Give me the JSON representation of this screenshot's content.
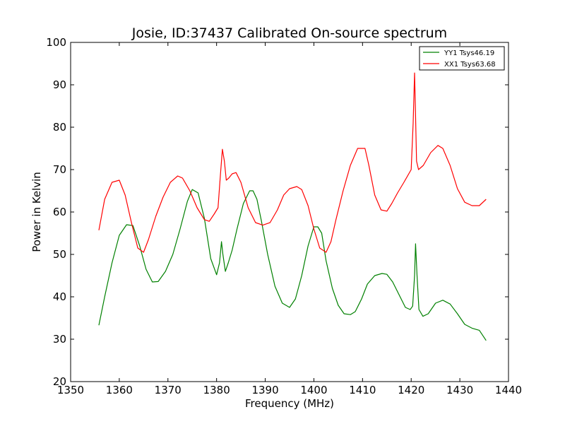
{
  "chart_data": {
    "type": "line",
    "title": "Josie, ID:37437 Calibrated On-source spectrum",
    "xlabel": "Frequency (MHz)",
    "ylabel": "Power in Kelvin",
    "xlim": [
      1350,
      1440
    ],
    "ylim": [
      20,
      100
    ],
    "xticks": [
      1350,
      1360,
      1370,
      1380,
      1390,
      1400,
      1410,
      1420,
      1430,
      1440
    ],
    "yticks": [
      20,
      30,
      40,
      50,
      60,
      70,
      80,
      90,
      100
    ],
    "grid": false,
    "legend_position": "top-right",
    "series": [
      {
        "name": "YY1 Tsys46.19",
        "color": "#008000",
        "x": [
          1355.8,
          1357.0,
          1358.5,
          1360.0,
          1361.5,
          1362.8,
          1364.2,
          1365.5,
          1366.8,
          1368.0,
          1369.5,
          1371.0,
          1372.5,
          1374.0,
          1375.0,
          1376.2,
          1377.5,
          1378.8,
          1380.0,
          1380.6,
          1381.0,
          1381.3,
          1381.8,
          1382.4,
          1383.2,
          1384.2,
          1385.5,
          1386.8,
          1387.5,
          1388.3,
          1389.2,
          1390.5,
          1392.0,
          1393.5,
          1395.0,
          1396.2,
          1397.5,
          1398.8,
          1400.0,
          1400.8,
          1401.6,
          1402.5,
          1403.8,
          1405.0,
          1406.2,
          1407.5,
          1408.5,
          1409.8,
          1411.0,
          1412.5,
          1414.0,
          1415.0,
          1416.2,
          1417.5,
          1418.8,
          1419.8,
          1420.3,
          1420.7,
          1420.9,
          1421.2,
          1421.6,
          1422.4,
          1423.5,
          1425.0,
          1426.5,
          1428.0,
          1429.5,
          1431.0,
          1432.5,
          1434.0,
          1435.4
        ],
        "y": [
          33.3,
          40.0,
          48.0,
          54.5,
          57.0,
          56.8,
          52.0,
          46.5,
          43.5,
          43.6,
          46.0,
          50.0,
          56.0,
          62.5,
          65.3,
          64.5,
          58.5,
          49.0,
          45.2,
          48.0,
          53.0,
          50.0,
          46.0,
          48.0,
          51.0,
          56.0,
          62.0,
          65.0,
          65.0,
          63.0,
          58.0,
          50.0,
          42.5,
          38.5,
          37.5,
          39.5,
          45.0,
          52.0,
          56.5,
          56.5,
          55.0,
          48.5,
          42.0,
          38.0,
          36.0,
          35.8,
          36.5,
          39.5,
          43.0,
          45.0,
          45.5,
          45.3,
          43.5,
          40.5,
          37.5,
          37.0,
          37.8,
          45.0,
          52.5,
          45.0,
          37.0,
          35.4,
          36.0,
          38.5,
          39.2,
          38.3,
          36.0,
          33.5,
          32.6,
          32.1,
          29.7
        ]
      },
      {
        "name": "XX1 Tsys63.68",
        "color": "#ff0000",
        "x": [
          1355.8,
          1357.0,
          1358.5,
          1360.0,
          1361.2,
          1362.5,
          1363.8,
          1365.0,
          1366.0,
          1367.5,
          1369.0,
          1370.5,
          1372.0,
          1373.0,
          1374.5,
          1376.0,
          1377.5,
          1378.5,
          1379.5,
          1380.3,
          1380.8,
          1381.2,
          1381.6,
          1382.0,
          1382.5,
          1383.2,
          1384.0,
          1385.0,
          1386.5,
          1388.0,
          1389.5,
          1391.0,
          1392.5,
          1393.8,
          1395.0,
          1396.5,
          1397.5,
          1398.8,
          1400.0,
          1401.2,
          1402.5,
          1403.5,
          1404.5,
          1406.0,
          1407.5,
          1409.0,
          1410.5,
          1411.3,
          1412.5,
          1413.8,
          1415.0,
          1416.0,
          1417.2,
          1418.5,
          1420.0,
          1420.4,
          1420.7,
          1420.85,
          1421.1,
          1421.5,
          1422.5,
          1424.0,
          1425.5,
          1426.5,
          1428.0,
          1429.5,
          1431.0,
          1432.5,
          1434.0,
          1435.4
        ],
        "y": [
          55.7,
          63.0,
          67.0,
          67.5,
          64.0,
          57.5,
          51.5,
          50.5,
          53.5,
          59.0,
          63.5,
          67.0,
          68.5,
          68.0,
          65.0,
          61.0,
          58.2,
          57.8,
          59.5,
          61.0,
          69.0,
          74.8,
          72.0,
          67.5,
          68.0,
          69.0,
          69.3,
          67.0,
          61.0,
          57.5,
          56.9,
          57.5,
          60.5,
          64.0,
          65.5,
          66.0,
          65.3,
          61.5,
          56.0,
          51.5,
          50.5,
          53.0,
          58.0,
          65.0,
          71.0,
          75.0,
          75.0,
          71.0,
          64.0,
          60.5,
          60.2,
          62.0,
          64.5,
          67.0,
          70.0,
          81.0,
          92.8,
          85.0,
          72.0,
          70.0,
          71.0,
          74.0,
          75.7,
          75.0,
          71.0,
          65.5,
          62.3,
          61.5,
          61.5,
          63.0
        ]
      }
    ]
  }
}
